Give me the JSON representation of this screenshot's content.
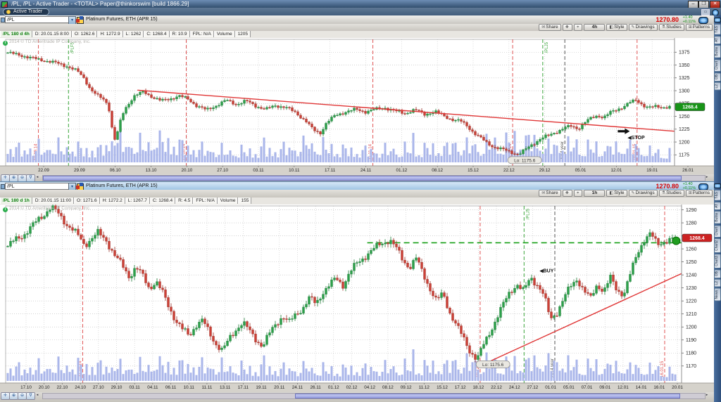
{
  "window": {
    "title": "/PL, /PL - Active Trader - <TOTAL> Paper@thinkorswim [build 1866.29]",
    "minimize": "–",
    "restore": "❐",
    "close": "✕"
  },
  "tab": {
    "label": "Active Trader"
  },
  "watermark": "2014 © TD Ameritrade IP Company, Inc.",
  "gadget_tabs": [
    "T&S",
    "AT",
    "Butns",
    "Chart",
    "Chart2",
    "Chart3",
    "OB",
    "L2",
    "News"
  ],
  "scroll": {
    "left_arrow": "◂",
    "right_arrow": "▸"
  },
  "nav_icons": {
    "pan": "✛",
    "zoom_in": "⊕",
    "zoom_out": "⊖",
    "filter": "∇"
  },
  "panels": [
    {
      "symbol": "/PL",
      "description": "Platinum Futures, ETH (APR 15)",
      "price": "1270.80",
      "change": "+1.40",
      "change_pct": "+0.11%",
      "toolbar": {
        "share": "Share",
        "timeframe": "4h",
        "style": "Style",
        "drawings": "Drawings",
        "studies": "Studies",
        "patterns": "Patterns"
      },
      "header": {
        "sym": "/PL 180 d 4h",
        "d": "D: 20.01.15 8:00",
        "o": "O: 1262.6",
        "h": "H: 1272.9",
        "l": "L: 1262",
        "c": "C: 1268.4",
        "r": "R: 10.9",
        "fpl": "FPL: N/A",
        "vol_label": "Volume",
        "vol": "1205"
      }
    },
    {
      "symbol": "/PL",
      "description": "Platinum Futures, ETH (APR 15)",
      "price": "1270.80",
      "change": "+1.40",
      "change_pct": "+0.11%",
      "toolbar": {
        "share": "Share",
        "timeframe": "1h",
        "style": "Style",
        "drawings": "Drawings",
        "studies": "Studies",
        "patterns": "Patterns"
      },
      "header": {
        "sym": "/PL 180 d 1h",
        "d": "D: 20.01.15 11:00",
        "o": "O: 1271.6",
        "h": "H: 1272.2",
        "l": "L: 1267.7",
        "c": "C: 1268.4",
        "r": "R: 4.5",
        "fpl": "FPL: N/A",
        "vol_label": "Volume",
        "vol": "155"
      }
    }
  ],
  "chart_data": [
    {
      "type": "candlestick",
      "title": "/PL 180 d 4h",
      "ylabel": "price",
      "grid": true,
      "ylim": [
        1159,
        1400
      ],
      "y_ticks": [
        1375,
        1350,
        1325,
        1300,
        1275,
        1250,
        1225,
        1200,
        1175
      ],
      "x_labels": [
        "22.09",
        "29.09",
        "06.10",
        "13.10",
        "20.10",
        "27.10",
        "03.11",
        "10.11",
        "17.11",
        "24.11",
        "01.12",
        "08.12",
        "15.12",
        "22.12",
        "29.12",
        "05.01",
        "12.01",
        "19.01",
        "26.01"
      ],
      "last_price": 1268.4,
      "badge_color": "#189418",
      "up_color": "#2ca04a",
      "down_color": "#cc4036",
      "volume_color": "#aab6ea",
      "close_path": [
        [
          0,
          1374
        ],
        [
          0.02,
          1370
        ],
        [
          0.045,
          1360
        ],
        [
          0.07,
          1355
        ],
        [
          0.09,
          1349
        ],
        [
          0.105,
          1338
        ],
        [
          0.115,
          1324
        ],
        [
          0.125,
          1302
        ],
        [
          0.135,
          1290
        ],
        [
          0.148,
          1281
        ],
        [
          0.154,
          1262
        ],
        [
          0.159,
          1215
        ],
        [
          0.163,
          1202
        ],
        [
          0.168,
          1232
        ],
        [
          0.176,
          1262
        ],
        [
          0.19,
          1288
        ],
        [
          0.205,
          1297
        ],
        [
          0.22,
          1288
        ],
        [
          0.232,
          1281
        ],
        [
          0.245,
          1284
        ],
        [
          0.258,
          1289
        ],
        [
          0.272,
          1283
        ],
        [
          0.285,
          1272
        ],
        [
          0.3,
          1263
        ],
        [
          0.315,
          1271
        ],
        [
          0.33,
          1280
        ],
        [
          0.345,
          1273
        ],
        [
          0.36,
          1281
        ],
        [
          0.375,
          1271
        ],
        [
          0.39,
          1263
        ],
        [
          0.405,
          1270
        ],
        [
          0.42,
          1268
        ],
        [
          0.435,
          1258
        ],
        [
          0.45,
          1242
        ],
        [
          0.462,
          1222
        ],
        [
          0.472,
          1216
        ],
        [
          0.482,
          1238
        ],
        [
          0.495,
          1252
        ],
        [
          0.51,
          1260
        ],
        [
          0.525,
          1263
        ],
        [
          0.54,
          1258
        ],
        [
          0.555,
          1263
        ],
        [
          0.57,
          1268
        ],
        [
          0.585,
          1261
        ],
        [
          0.6,
          1255
        ],
        [
          0.615,
          1262
        ],
        [
          0.63,
          1254
        ],
        [
          0.645,
          1261
        ],
        [
          0.66,
          1250
        ],
        [
          0.672,
          1243
        ],
        [
          0.685,
          1239
        ],
        [
          0.695,
          1230
        ],
        [
          0.705,
          1218
        ],
        [
          0.715,
          1208
        ],
        [
          0.725,
          1198
        ],
        [
          0.735,
          1190
        ],
        [
          0.748,
          1184
        ],
        [
          0.76,
          1180
        ],
        [
          0.772,
          1176
        ],
        [
          0.782,
          1186
        ],
        [
          0.792,
          1196
        ],
        [
          0.805,
          1206
        ],
        [
          0.818,
          1212
        ],
        [
          0.83,
          1220
        ],
        [
          0.842,
          1228
        ],
        [
          0.852,
          1232
        ],
        [
          0.862,
          1227
        ],
        [
          0.872,
          1238
        ],
        [
          0.882,
          1246
        ],
        [
          0.892,
          1251
        ],
        [
          0.9,
          1247
        ],
        [
          0.91,
          1257
        ],
        [
          0.92,
          1264
        ],
        [
          0.93,
          1270
        ],
        [
          0.94,
          1277
        ],
        [
          0.95,
          1281
        ],
        [
          0.96,
          1271
        ],
        [
          0.968,
          1266
        ],
        [
          0.978,
          1269
        ]
      ],
      "volume_env": [
        [
          0,
          32
        ],
        [
          0.08,
          36
        ],
        [
          0.14,
          30
        ],
        [
          0.16,
          58
        ],
        [
          0.19,
          40
        ],
        [
          0.24,
          52
        ],
        [
          0.28,
          34
        ],
        [
          0.34,
          26
        ],
        [
          0.4,
          30
        ],
        [
          0.46,
          42
        ],
        [
          0.52,
          28
        ],
        [
          0.58,
          30
        ],
        [
          0.64,
          34
        ],
        [
          0.7,
          40
        ],
        [
          0.74,
          46
        ],
        [
          0.78,
          58
        ],
        [
          0.82,
          38
        ],
        [
          0.86,
          42
        ],
        [
          0.9,
          32
        ],
        [
          0.94,
          40
        ],
        [
          0.978,
          24
        ]
      ],
      "trendline": {
        "x1": 0.197,
        "p1": 1301,
        "x2": 1.0,
        "p2": 1221,
        "color": "#e03535"
      },
      "vlines": [
        {
          "x": 0.049,
          "color": "#e05555",
          "label": "19.09.14",
          "pos": "bottom"
        },
        {
          "x": 0.094,
          "color": "#3aa53a",
          "label": "/PLF5",
          "pos": "top"
        },
        {
          "x": 0.27,
          "color": "#e05555",
          "label": "17.10.14",
          "pos": "bottom"
        },
        {
          "x": 0.549,
          "color": "#e05555",
          "label": "21.11.14",
          "pos": "bottom"
        },
        {
          "x": 0.758,
          "color": "#e05555",
          "label": "19.12.14",
          "pos": "bottom"
        },
        {
          "x": 0.803,
          "color": "#3aa53a",
          "label": "/PLJ5",
          "pos": "top"
        },
        {
          "x": 0.836,
          "color": "#555555",
          "label": "2014 year",
          "pos": "bottom"
        },
        {
          "x": 0.944,
          "color": "#e05555",
          "label": "16.01.15",
          "pos": "bottom"
        }
      ],
      "low_marker": {
        "x": 0.776,
        "price": 1175.6,
        "label": "Lo: 1175.6"
      },
      "annotations": [
        {
          "type": "arrow",
          "x": 0.932,
          "price": 1221
        },
        {
          "type": "text",
          "text": "◀STOP",
          "x": 0.934,
          "price": 1208
        }
      ]
    },
    {
      "type": "candlestick",
      "title": "/PL 180 d 1h",
      "ylabel": "price",
      "grid": true,
      "ylim": [
        1158,
        1293
      ],
      "y_ticks": [
        1290,
        1280,
        1270,
        1260,
        1250,
        1240,
        1230,
        1220,
        1210,
        1200,
        1190,
        1180,
        1170
      ],
      "x_labels": [
        "17.10",
        "20.10",
        "22.10",
        "24.10",
        "27.10",
        "29.10",
        "03.11",
        "04.11",
        "06.11",
        "10.11",
        "11.11",
        "13.11",
        "17.11",
        "19.11",
        "20.11",
        "24.11",
        "26.11",
        "01.12",
        "02.12",
        "04.12",
        "08.12",
        "09.12",
        "11.12",
        "15.12",
        "17.12",
        "18.12",
        "22.12",
        "24.12",
        "27.12",
        "01.01",
        "05.01",
        "07.01",
        "09.01",
        "12.01",
        "14.01",
        "16.01",
        "20.01"
      ],
      "last_price": 1268.4,
      "badge_color": "#cc2222",
      "up_color": "#2ca04a",
      "down_color": "#cc4036",
      "volume_color": "#aab6ea",
      "close_path": [
        [
          0,
          1262
        ],
        [
          0.012,
          1268
        ],
        [
          0.025,
          1272
        ],
        [
          0.04,
          1279
        ],
        [
          0.055,
          1286
        ],
        [
          0.065,
          1292
        ],
        [
          0.075,
          1288
        ],
        [
          0.088,
          1280
        ],
        [
          0.098,
          1275
        ],
        [
          0.108,
          1268
        ],
        [
          0.115,
          1262
        ],
        [
          0.125,
          1267
        ],
        [
          0.135,
          1272
        ],
        [
          0.148,
          1267
        ],
        [
          0.16,
          1256
        ],
        [
          0.172,
          1247
        ],
        [
          0.182,
          1238
        ],
        [
          0.192,
          1245
        ],
        [
          0.202,
          1239
        ],
        [
          0.212,
          1230
        ],
        [
          0.222,
          1236
        ],
        [
          0.232,
          1227
        ],
        [
          0.242,
          1215
        ],
        [
          0.252,
          1204
        ],
        [
          0.262,
          1197
        ],
        [
          0.272,
          1193
        ],
        [
          0.282,
          1202
        ],
        [
          0.292,
          1206
        ],
        [
          0.302,
          1196
        ],
        [
          0.312,
          1187
        ],
        [
          0.322,
          1181
        ],
        [
          0.332,
          1190
        ],
        [
          0.342,
          1198
        ],
        [
          0.352,
          1204
        ],
        [
          0.362,
          1198
        ],
        [
          0.372,
          1191
        ],
        [
          0.382,
          1185
        ],
        [
          0.392,
          1194
        ],
        [
          0.402,
          1202
        ],
        [
          0.412,
          1208
        ],
        [
          0.422,
          1204
        ],
        [
          0.432,
          1211
        ],
        [
          0.442,
          1215
        ],
        [
          0.452,
          1222
        ],
        [
          0.462,
          1217
        ],
        [
          0.472,
          1226
        ],
        [
          0.482,
          1232
        ],
        [
          0.492,
          1238
        ],
        [
          0.502,
          1233
        ],
        [
          0.512,
          1242
        ],
        [
          0.522,
          1248
        ],
        [
          0.532,
          1252
        ],
        [
          0.545,
          1258
        ],
        [
          0.558,
          1264
        ],
        [
          0.572,
          1268
        ],
        [
          0.582,
          1261
        ],
        [
          0.592,
          1251
        ],
        [
          0.602,
          1245
        ],
        [
          0.612,
          1252
        ],
        [
          0.622,
          1241
        ],
        [
          0.632,
          1231
        ],
        [
          0.642,
          1221
        ],
        [
          0.652,
          1226
        ],
        [
          0.662,
          1211
        ],
        [
          0.672,
          1201
        ],
        [
          0.682,
          1191
        ],
        [
          0.692,
          1182
        ],
        [
          0.703,
          1176
        ],
        [
          0.713,
          1187
        ],
        [
          0.723,
          1197
        ],
        [
          0.733,
          1207
        ],
        [
          0.743,
          1217
        ],
        [
          0.753,
          1227
        ],
        [
          0.763,
          1233
        ],
        [
          0.773,
          1228
        ],
        [
          0.783,
          1239
        ],
        [
          0.793,
          1233
        ],
        [
          0.803,
          1224
        ],
        [
          0.813,
          1205
        ],
        [
          0.823,
          1211
        ],
        [
          0.833,
          1222
        ],
        [
          0.843,
          1232
        ],
        [
          0.853,
          1238
        ],
        [
          0.863,
          1228
        ],
        [
          0.873,
          1221
        ],
        [
          0.883,
          1232
        ],
        [
          0.893,
          1227
        ],
        [
          0.903,
          1238
        ],
        [
          0.913,
          1229
        ],
        [
          0.923,
          1226
        ],
        [
          0.933,
          1241
        ],
        [
          0.943,
          1256
        ],
        [
          0.953,
          1266
        ],
        [
          0.963,
          1271
        ],
        [
          0.973,
          1264
        ],
        [
          0.985,
          1267
        ],
        [
          1,
          1268
        ]
      ],
      "volume_env": [
        [
          0,
          30
        ],
        [
          0.06,
          34
        ],
        [
          0.12,
          38
        ],
        [
          0.18,
          32
        ],
        [
          0.24,
          40
        ],
        [
          0.3,
          36
        ],
        [
          0.36,
          30
        ],
        [
          0.42,
          30
        ],
        [
          0.48,
          28
        ],
        [
          0.54,
          30
        ],
        [
          0.6,
          34
        ],
        [
          0.66,
          38
        ],
        [
          0.7,
          46
        ],
        [
          0.74,
          40
        ],
        [
          0.8,
          48
        ],
        [
          0.84,
          40
        ],
        [
          0.88,
          36
        ],
        [
          0.92,
          34
        ],
        [
          0.96,
          30
        ],
        [
          1,
          22
        ]
      ],
      "trendline": {
        "x1": 0.718,
        "p1": 1174,
        "x2": 1.0,
        "p2": 1241,
        "color": "#e03535"
      },
      "hline": {
        "price": 1264.7,
        "x1": 0.535,
        "x2": 1.0,
        "color": "#17a017"
      },
      "dot": {
        "x": 0.992,
        "price": 1266.2,
        "color": "#1f9d1f"
      },
      "vlines": [
        {
          "x": 0.114,
          "color": "#e05555",
          "label": "21.10.14",
          "pos": "bottom"
        },
        {
          "x": 0.702,
          "color": "#e05555",
          "label": "19.12.14",
          "pos": "bottom"
        },
        {
          "x": 0.767,
          "color": "#3aa53a",
          "label": "/PLJ5",
          "pos": "top"
        },
        {
          "x": 0.8125,
          "color": "#555555",
          "label": "2014 year",
          "pos": "bottom"
        },
        {
          "x": 0.975,
          "color": "#e05555",
          "label": "16.01.15",
          "pos": "bottom"
        }
      ],
      "low_marker": {
        "x": 0.721,
        "price": 1175.6,
        "label": "Lo: 1175.6"
      },
      "annotations": [
        {
          "type": "text",
          "text": "◀BUY",
          "x": 0.794,
          "price": 1243
        }
      ]
    }
  ]
}
